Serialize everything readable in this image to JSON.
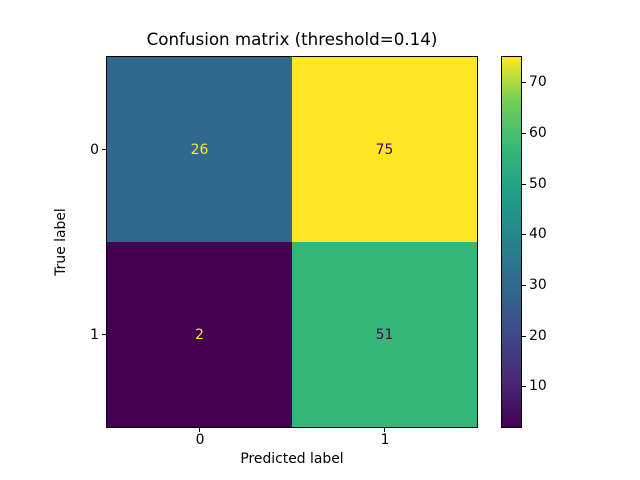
{
  "title": "Confusion matrix (threshold=0.14)",
  "axes": {
    "xlabel": "Predicted label",
    "ylabel": "True label",
    "xticks": [
      "0",
      "1"
    ],
    "yticks": [
      "0",
      "1"
    ]
  },
  "cells": [
    {
      "row": "0",
      "col": "0",
      "value": "26",
      "bg": "#31688e",
      "fg": "#fde725"
    },
    {
      "row": "0",
      "col": "1",
      "value": "75",
      "bg": "#fde725",
      "fg": "#440154"
    },
    {
      "row": "1",
      "col": "0",
      "value": "2",
      "bg": "#440154",
      "fg": "#fde725"
    },
    {
      "row": "1",
      "col": "1",
      "value": "51",
      "bg": "#35b779",
      "fg": "#440154"
    }
  ],
  "colorbar": {
    "ticks": [
      "70",
      "60",
      "50",
      "40",
      "30",
      "20",
      "10"
    ],
    "colormap": "viridis",
    "top_color": "#fde725",
    "bottom_color": "#440154"
  },
  "chart_data": {
    "type": "heatmap",
    "title": "Confusion matrix (threshold=0.14)",
    "xlabel": "Predicted label",
    "ylabel": "True label",
    "x_categories": [
      "0",
      "1"
    ],
    "y_categories": [
      "0",
      "1"
    ],
    "matrix": [
      [
        26,
        75
      ],
      [
        2,
        51
      ]
    ],
    "colormap": "viridis",
    "vmin": 2,
    "vmax": 75,
    "colorbar_ticks": [
      10,
      20,
      30,
      40,
      50,
      60,
      70
    ],
    "legend_position": "colorbar-right",
    "grid": false
  }
}
